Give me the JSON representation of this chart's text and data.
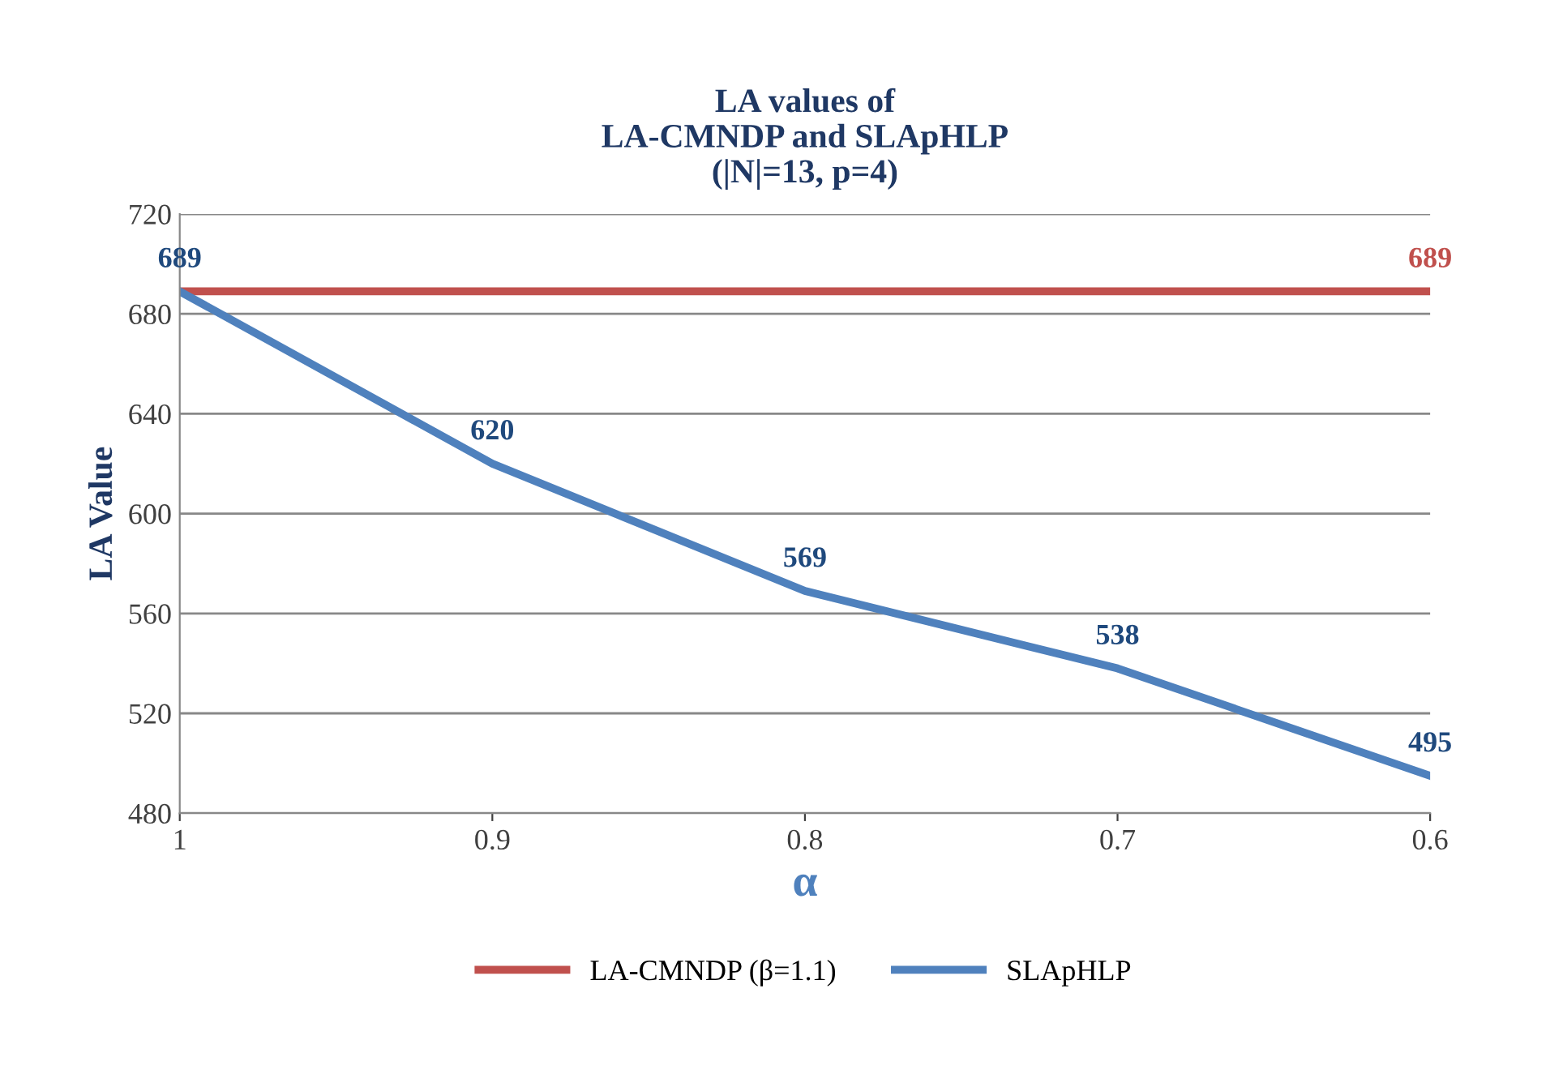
{
  "chart_data": {
    "type": "line",
    "title": "LA values of\nLA-CMNDP and SLApHLP\n(|N|=13, p=4)",
    "xlabel": "α",
    "ylabel": "LA Value",
    "categories": [
      "1",
      "0.9",
      "0.8",
      "0.7",
      "0.6"
    ],
    "series": [
      {
        "name": "LA-CMNDP (β=1.1)",
        "color": "#c0504d",
        "values": [
          689,
          689,
          689,
          689,
          689
        ],
        "value_labels": [
          null,
          null,
          null,
          null,
          "689"
        ]
      },
      {
        "name": "SLApHLP",
        "color": "#4f81bd",
        "values": [
          689,
          620,
          569,
          538,
          495
        ],
        "value_labels": [
          "689",
          "620",
          "569",
          "538",
          "495"
        ]
      }
    ],
    "ylim": [
      480,
      720
    ],
    "yticks": [
      480,
      520,
      560,
      600,
      640,
      680,
      720
    ],
    "grid": "y",
    "legend": "bottom",
    "marker": "none",
    "line_style": "solid"
  }
}
